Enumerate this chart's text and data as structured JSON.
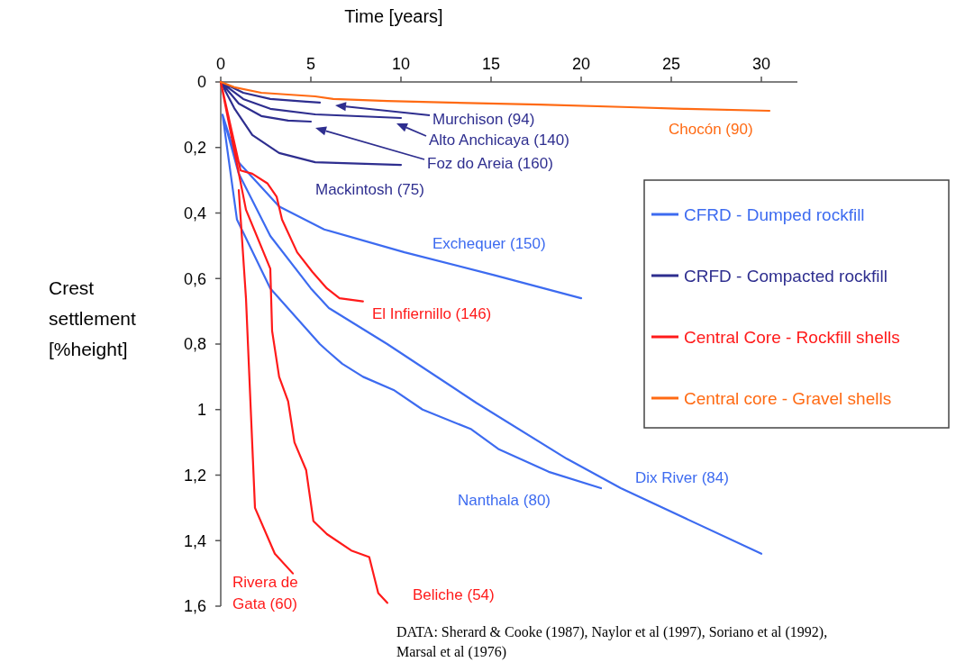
{
  "chart_data": {
    "type": "line",
    "xlabel": "Time [years]",
    "ylabel": "Crest settlement [%height]",
    "xlim": [
      0,
      32
    ],
    "xticks": [
      0,
      5,
      10,
      15,
      20,
      25,
      30
    ],
    "ylim": [
      1.6,
      0
    ],
    "yticks": [
      {
        "value": 0,
        "label": "0"
      },
      {
        "value": 0.2,
        "label": "0,2"
      },
      {
        "value": 0.4,
        "label": "0,4"
      },
      {
        "value": 0.6,
        "label": "0,6"
      },
      {
        "value": 0.8,
        "label": "0,8"
      },
      {
        "value": 1,
        "label": "1"
      },
      {
        "value": 1.2,
        "label": "1,2"
      },
      {
        "value": 1.4,
        "label": "1,4"
      },
      {
        "value": 1.6,
        "label": "1,6"
      }
    ],
    "legend": "right",
    "line_style": "solid",
    "grid": false,
    "series": [
      {
        "name": "CFRD - Dumped rockfill",
        "color": "#3d6bf0",
        "x": [
          0.1,
          0.9,
          3.24,
          5.74,
          10.2,
          15.2,
          20,
          null,
          0.1,
          0.9,
          2.75,
          5.5,
          5.9,
          6.74,
          7.9,
          9.59,
          11.2,
          13.9,
          15.4,
          18.2,
          21.1,
          null,
          0.1,
          1,
          2.75,
          5,
          6,
          9.24,
          14.2,
          19.2,
          22.2,
          30
        ],
        "values": [
          0.1,
          0.24,
          0.38,
          0.45,
          0.52,
          0.59,
          0.66,
          null,
          0.1,
          0.42,
          0.63,
          0.8,
          0.82,
          0.86,
          0.9,
          0.94,
          1.0,
          1.06,
          1.12,
          1.19,
          1.24,
          null,
          0.1,
          0.28,
          0.47,
          0.63,
          0.69,
          0.8,
          0.98,
          1.15,
          1.24,
          1.44
        ]
      },
      {
        "name": "CRFD - Compacted rockfill",
        "color": "#2e2e8f",
        "x": [
          0,
          1.25,
          2.75,
          4.74,
          5.5,
          null,
          0,
          1.25,
          2.75,
          5.24,
          10,
          null,
          0,
          1,
          2.25,
          3.74,
          5,
          null,
          0,
          0.75,
          1.75,
          3.24,
          5.24,
          10
        ],
        "values": [
          0,
          0.033,
          0.052,
          0.06,
          0.063,
          null,
          0,
          0.052,
          0.082,
          0.099,
          0.11,
          null,
          0,
          0.066,
          0.104,
          0.118,
          0.121,
          null,
          0,
          0.08,
          0.162,
          0.217,
          0.245,
          0.253
        ]
      },
      {
        "name": "Central Core - Rockfill shells",
        "color": "#ff1a1a",
        "x": [
          0,
          1.1,
          1.75,
          2.6,
          3.1,
          3.4,
          4.24,
          5.09,
          5.89,
          6.59,
          7.89,
          null,
          1,
          1.4,
          1.9,
          3,
          4,
          null,
          0,
          1.4,
          2.75,
          2.85,
          3.24,
          3.74,
          4.09,
          4.74,
          5.14,
          5.89,
          7.24,
          8.24,
          8.74,
          9.24
        ],
        "values": [
          0,
          0.27,
          0.28,
          0.31,
          0.35,
          0.42,
          0.52,
          0.58,
          0.63,
          0.66,
          0.67,
          null,
          0.33,
          0.66,
          1.3,
          1.44,
          1.5,
          null,
          0,
          0.39,
          0.57,
          0.76,
          0.9,
          0.975,
          1.1,
          1.185,
          1.34,
          1.38,
          1.43,
          1.45,
          1.56,
          1.59
        ]
      },
      {
        "name": "Central core - Gravel shells",
        "color": "#ff6a13",
        "x": [
          0,
          0.75,
          2.25,
          5.24,
          6.24,
          9.24,
          12.7,
          17.7,
          22.7,
          25.7,
          30.45
        ],
        "values": [
          0,
          0.016,
          0.033,
          0.044,
          0.052,
          0.058,
          0.063,
          0.069,
          0.077,
          0.082,
          0.088
        ]
      }
    ],
    "annotations": [
      "Exchequer (150)",
      "Nanthala (80)",
      "Dix River (84)",
      "Murchison (94)",
      "Alto Anchicaya (140)",
      "Foz do Areia (160)",
      "Mackintosh (75)",
      "El Infiernillo (146)",
      "Rivera de Gata (60)",
      "Beliche (54)",
      "Chocón (90)",
      "DATA: Sherard & Cooke (1987), Naylor et al (1997), Soriano et al (1992), Marsal et al (1976)"
    ]
  }
}
